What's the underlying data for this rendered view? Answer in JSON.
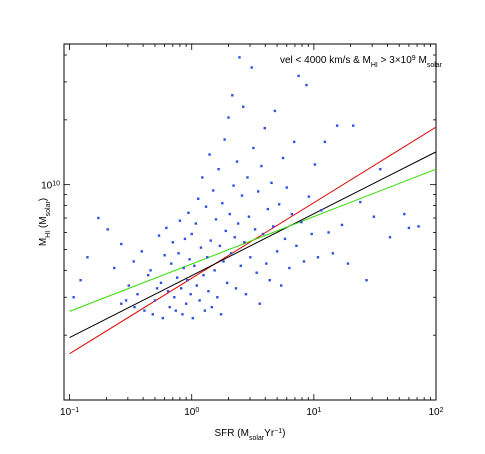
{
  "chart_data": {
    "type": "scatter",
    "title": "",
    "annotation": {
      "prefix": "vel < 4000 km/s & M",
      "sub1": "HI",
      "mid": " > 3×10",
      "sup": "9",
      "mid2": " M",
      "sub2": "solar"
    },
    "xlabel": {
      "main": "SFR (M",
      "sub": "solar",
      "mid": "Yr",
      "sup": "−1",
      "end": ")"
    },
    "ylabel": {
      "main": "M",
      "sub": "HI",
      "mid": " (M",
      "sub2": "solar",
      "end": ")"
    },
    "x_scale": "log",
    "y_scale": "log",
    "xlim": [
      0.09,
      100
    ],
    "ylim": [
      1000000000.0,
      45000000000.0
    ],
    "x_ticks": [
      {
        "value": 0.1,
        "base": "10",
        "exp": "−1"
      },
      {
        "value": 1,
        "base": "10",
        "exp": "0"
      },
      {
        "value": 10,
        "base": "10",
        "exp": "1"
      },
      {
        "value": 100,
        "base": "10",
        "exp": "2"
      }
    ],
    "y_ticks": [
      {
        "value": 10000000000.0,
        "base": "10",
        "exp": "10"
      }
    ],
    "grid": false,
    "colors": {
      "points": "#2f4fe0",
      "red": "#e00000",
      "black": "#000000",
      "green": "#33dd00"
    },
    "lines": [
      {
        "name": "",
        "color": "#e00000",
        "x": [
          0.1,
          100
        ],
        "y": [
          1640000000.0,
          18500000000.0
        ]
      },
      {
        "name": "",
        "color": "#000000",
        "x": [
          0.1,
          100
        ],
        "y": [
          1950000000.0,
          14200000000.0
        ]
      },
      {
        "name": "",
        "color": "#33dd00",
        "x": [
          0.1,
          100
        ],
        "y": [
          2580000000.0,
          11800000000.0
        ]
      }
    ],
    "points": {
      "color": "#2f4fe0",
      "note": "",
      "x": [
        0.108,
        0.123,
        0.14,
        0.172,
        0.205,
        0.232,
        0.265,
        0.29,
        0.265,
        0.305,
        0.335,
        0.34,
        0.36,
        0.39,
        0.41,
        0.44,
        0.46,
        0.48,
        0.5,
        0.52,
        0.54,
        0.56,
        0.58,
        0.6,
        0.62,
        0.64,
        0.66,
        0.68,
        0.7,
        0.72,
        0.74,
        0.76,
        0.78,
        0.8,
        0.82,
        0.84,
        0.86,
        0.88,
        0.9,
        0.92,
        0.94,
        0.96,
        0.98,
        1.0,
        1.02,
        1.05,
        1.08,
        1.1,
        1.13,
        1.16,
        1.19,
        1.22,
        1.25,
        1.28,
        1.31,
        1.34,
        1.37,
        1.4,
        1.43,
        1.46,
        1.5,
        1.54,
        1.58,
        1.62,
        1.66,
        1.7,
        1.74,
        1.78,
        1.82,
        1.86,
        1.9,
        1.95,
        2.0,
        2.05,
        2.1,
        2.15,
        2.2,
        2.25,
        2.3,
        2.35,
        2.4,
        2.46,
        2.52,
        2.58,
        2.64,
        2.7,
        2.78,
        2.86,
        2.94,
        3.02,
        3.1,
        3.2,
        3.3,
        3.4,
        3.5,
        3.6,
        3.72,
        3.84,
        3.96,
        4.08,
        4.2,
        4.35,
        4.5,
        4.65,
        4.8,
        5.0,
        5.2,
        5.4,
        5.6,
        5.8,
        6.0,
        6.3,
        6.6,
        6.9,
        7.2,
        7.5,
        7.9,
        8.3,
        8.7,
        9.1,
        9.6,
        10.2,
        10.8,
        11.5,
        12.3,
        13.2,
        14.3,
        15.5,
        17.0,
        19.0,
        21.0,
        24.0,
        27.0,
        31.0,
        35.0,
        42.0,
        55.0,
        60.0,
        72.0
      ],
      "y": [
        3000000000.0,
        3600000000.0,
        4600000000.0,
        7000000000.0,
        6200000000.0,
        4100000000.0,
        2800000000.0,
        2900000000.0,
        5300000000.0,
        3400000000.0,
        4400000000.0,
        2700000000.0,
        3100000000.0,
        4900000000.0,
        2600000000.0,
        3800000000.0,
        4000000000.0,
        2500000000.0,
        2900000000.0,
        3300000000.0,
        5800000000.0,
        3500000000.0,
        2400000000.0,
        4700000000.0,
        6300000000.0,
        3200000000.0,
        2700000000.0,
        4300000000.0,
        5400000000.0,
        3000000000.0,
        2600000000.0,
        3700000000.0,
        4800000000.0,
        6800000000.0,
        3300000000.0,
        2500000000.0,
        4100000000.0,
        5600000000.0,
        2800000000.0,
        3600000000.0,
        7400000000.0,
        4500000000.0,
        3100000000.0,
        5900000000.0,
        2400000000.0,
        4200000000.0,
        6600000000.0,
        3400000000.0,
        8600000000.0,
        2900000000.0,
        5100000000.0,
        10800000000.0,
        3800000000.0,
        2600000000.0,
        7900000000.0,
        4600000000.0,
        3200000000.0,
        13800000000.0,
        5500000000.0,
        2700000000.0,
        9400000000.0,
        4000000000.0,
        6900000000.0,
        3000000000.0,
        11800000000.0,
        5200000000.0,
        2500000000.0,
        8200000000.0,
        4400000000.0,
        16200000000.0,
        6100000000.0,
        3500000000.0,
        20500000000.0,
        7300000000.0,
        4800000000.0,
        26000000000.0,
        9900000000.0,
        5700000000.0,
        3300000000.0,
        12800000000.0,
        6600000000.0,
        39000000000.0,
        4200000000.0,
        8900000000.0,
        23000000000.0,
        5400000000.0,
        3100000000.0,
        10800000000.0,
        7100000000.0,
        4600000000.0,
        35000000000.0,
        14800000000.0,
        6200000000.0,
        3900000000.0,
        9300000000.0,
        2800000000.0,
        12200000000.0,
        5900000000.0,
        18300000000.0,
        4300000000.0,
        7700000000.0,
        3600000000.0,
        10200000000.0,
        6400000000.0,
        22000000000.0,
        4900000000.0,
        8100000000.0,
        3400000000.0,
        13300000000.0,
        5600000000.0,
        9700000000.0,
        4100000000.0,
        7300000000.0,
        15800000000.0,
        5200000000.0,
        32000000000.0,
        6700000000.0,
        4400000000.0,
        29000000000.0,
        8800000000.0,
        5900000000.0,
        12400000000.0,
        4600000000.0,
        7600000000.0,
        15800000000.0,
        6000000000.0,
        4800000000.0,
        18800000000.0,
        6500000000.0,
        4300000000.0,
        18800000000.0,
        8300000000.0,
        3600000000.0,
        7100000000.0,
        11800000000.0,
        5700000000.0,
        7300000000.0,
        6300000000.0,
        6400000000.0
      ]
    }
  }
}
